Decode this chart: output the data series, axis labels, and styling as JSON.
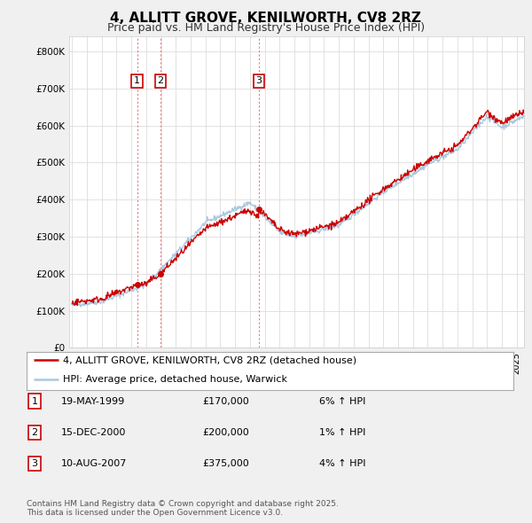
{
  "title": "4, ALLITT GROVE, KENILWORTH, CV8 2RZ",
  "subtitle": "Price paid vs. HM Land Registry's House Price Index (HPI)",
  "ylabel_ticks": [
    "£0",
    "£100K",
    "£200K",
    "£300K",
    "£400K",
    "£500K",
    "£600K",
    "£700K",
    "£800K"
  ],
  "ytick_values": [
    0,
    100000,
    200000,
    300000,
    400000,
    500000,
    600000,
    700000,
    800000
  ],
  "ylim": [
    0,
    840000
  ],
  "xlim_start": 1994.8,
  "xlim_end": 2025.5,
  "sale1": {
    "date_num": 1999.38,
    "price": 170000,
    "label": "1"
  },
  "sale2": {
    "date_num": 2000.96,
    "price": 200000,
    "label": "2"
  },
  "sale3": {
    "date_num": 2007.61,
    "price": 375000,
    "label": "3"
  },
  "legend_label_red": "4, ALLITT GROVE, KENILWORTH, CV8 2RZ (detached house)",
  "legend_label_blue": "HPI: Average price, detached house, Warwick",
  "footer": "Contains HM Land Registry data © Crown copyright and database right 2025.\nThis data is licensed under the Open Government Licence v3.0.",
  "table_rows": [
    {
      "num": "1",
      "date": "19-MAY-1999",
      "price": "£170,000",
      "hpi": "6% ↑ HPI"
    },
    {
      "num": "2",
      "date": "15-DEC-2000",
      "price": "£200,000",
      "hpi": "1% ↑ HPI"
    },
    {
      "num": "3",
      "date": "10-AUG-2007",
      "price": "£375,000",
      "hpi": "4% ↑ HPI"
    }
  ],
  "background_color": "#f0f0f0",
  "plot_bg_color": "#ffffff",
  "red_color": "#cc0000",
  "blue_color": "#aac8e0",
  "vline_color": "#e08080",
  "grid_color": "#dddddd"
}
